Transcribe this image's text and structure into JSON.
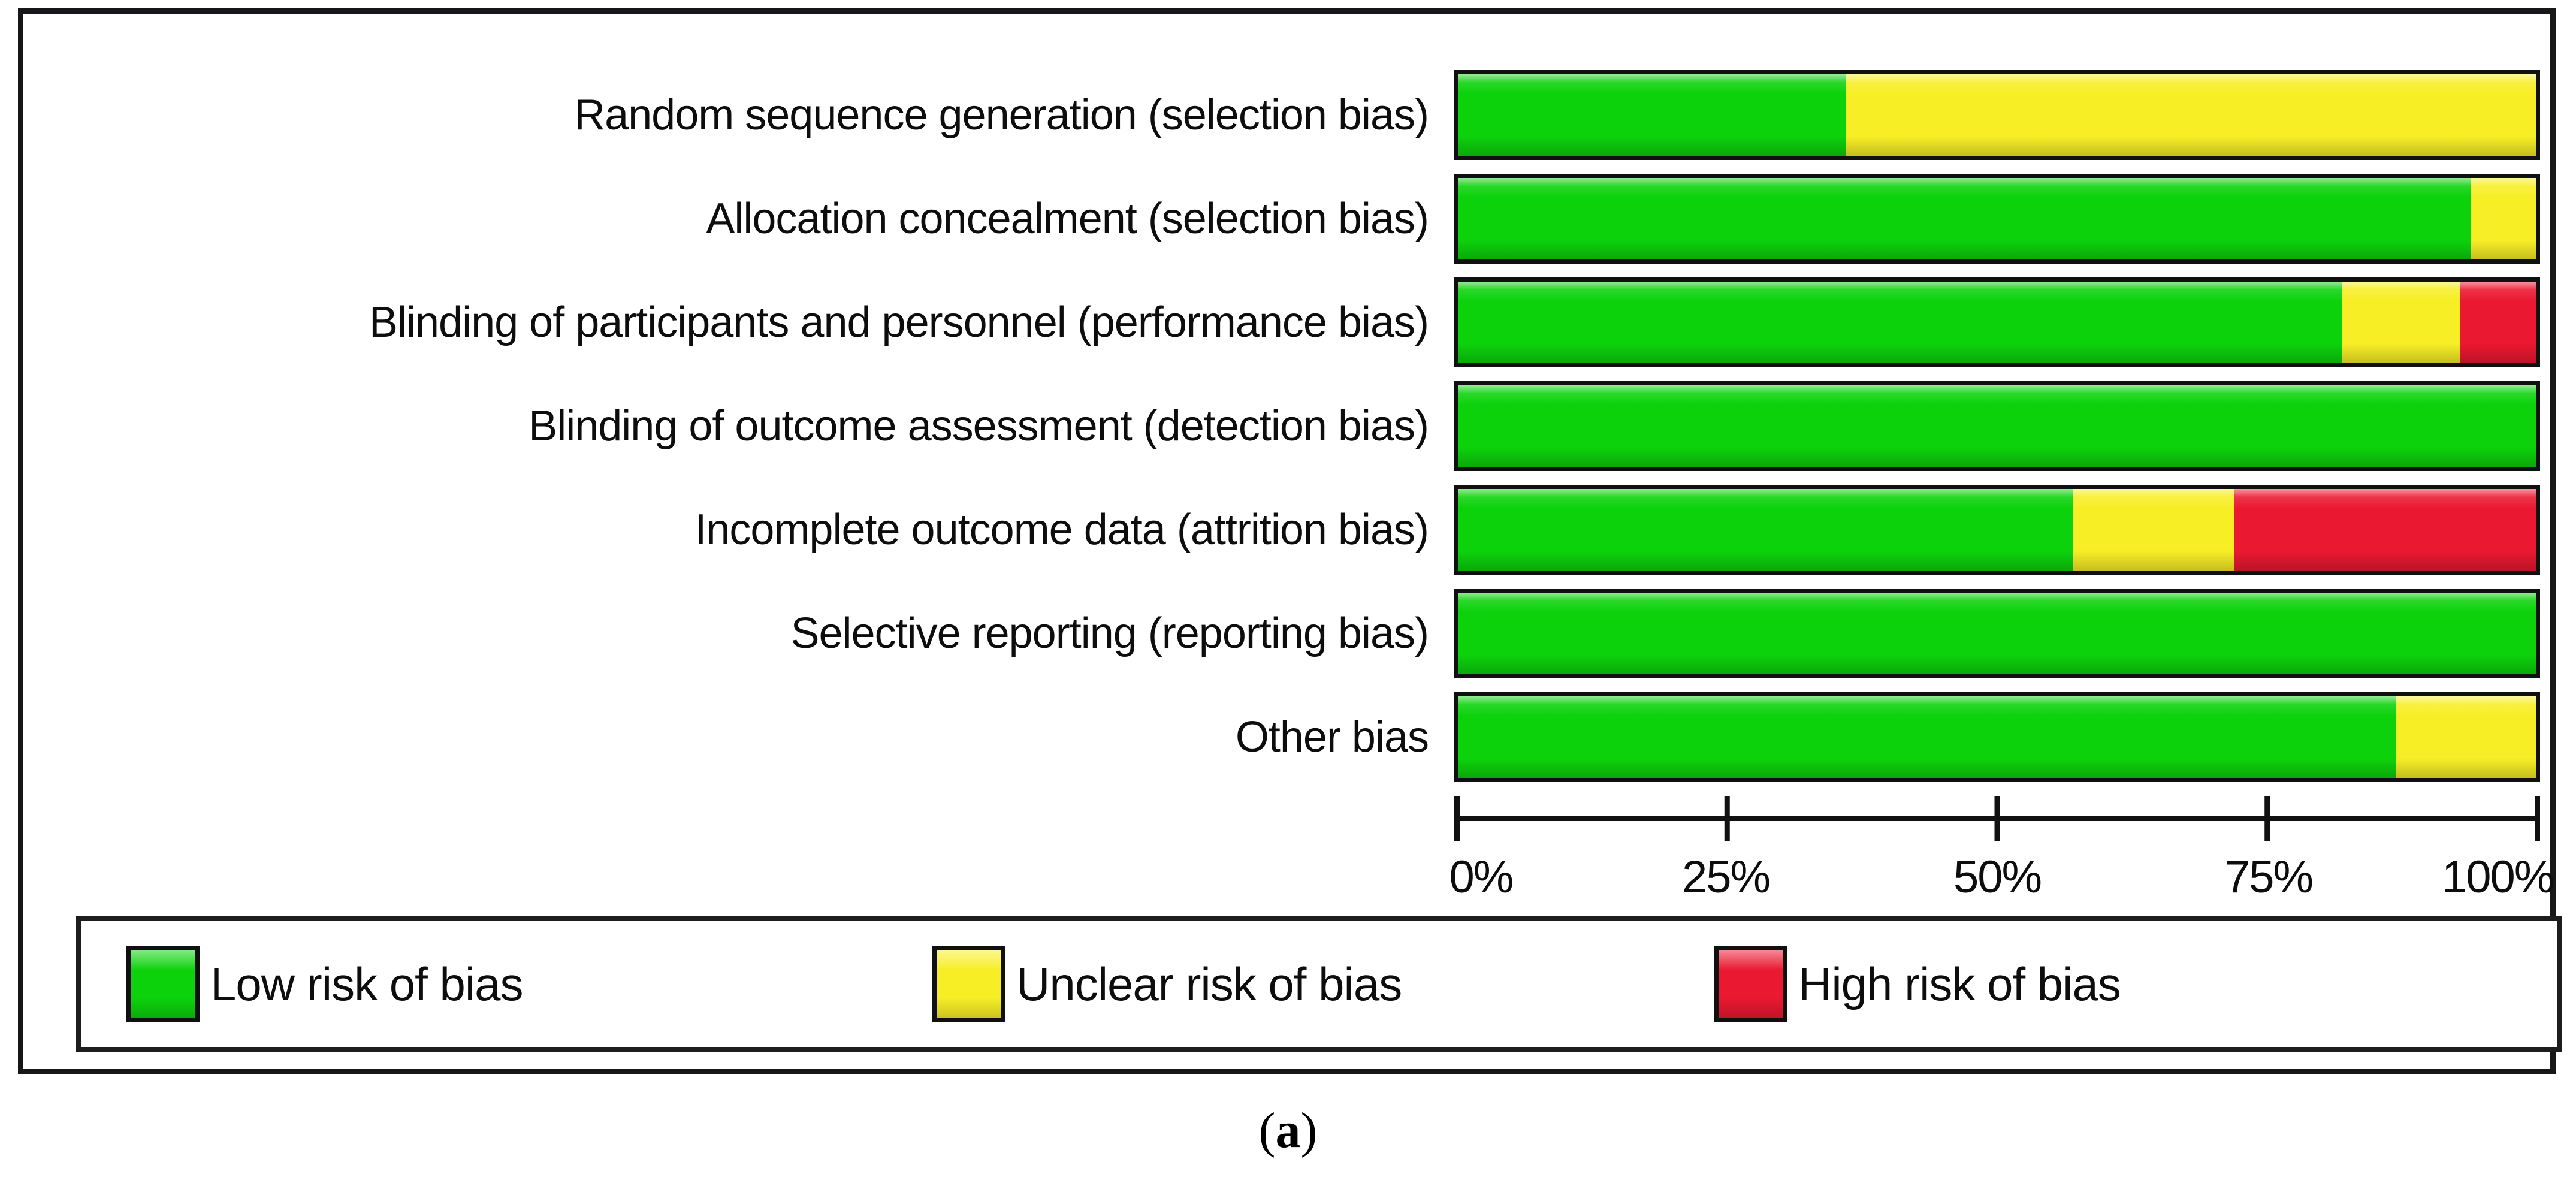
{
  "figure": {
    "caption_prefix": "(",
    "caption_letter": "a",
    "caption_suffix": ")"
  },
  "chart_data": {
    "type": "bar",
    "subtype": "horizontal_stacked_percentage",
    "categories": [
      "Random sequence generation (selection bias)",
      "Allocation concealment (selection bias)",
      "Blinding of participants and personnel (performance bias)",
      "Blinding of outcome assessment (detection bias)",
      "Incomplete outcome data (attrition bias)",
      "Selective reporting (reporting bias)",
      "Other bias"
    ],
    "series": [
      {
        "name": "Low risk of bias",
        "color": "#0cd20c",
        "values": [
          36,
          94,
          82,
          100,
          57,
          100,
          87
        ]
      },
      {
        "name": "Unclear risk of bias",
        "color": "#f7ee26",
        "values": [
          64,
          6,
          11,
          0,
          15,
          0,
          13
        ]
      },
      {
        "name": "High risk of bias",
        "color": "#ea1830",
        "values": [
          0,
          0,
          7,
          0,
          28,
          0,
          0
        ]
      }
    ],
    "x_axis": {
      "min": 0,
      "max": 100,
      "tick_positions": [
        0,
        25,
        50,
        75,
        100
      ],
      "tick_labels": [
        "0%",
        "25%",
        "50%",
        "75%",
        "100%"
      ]
    },
    "legend": {
      "position": "bottom",
      "entries": [
        {
          "label": "Low risk of bias",
          "color": "#0cd20c"
        },
        {
          "label": "Unclear risk of bias",
          "color": "#f7ee26"
        },
        {
          "label": "High risk of bias",
          "color": "#ea1830"
        }
      ]
    },
    "grid": false,
    "bar_border_color": "#101010"
  }
}
